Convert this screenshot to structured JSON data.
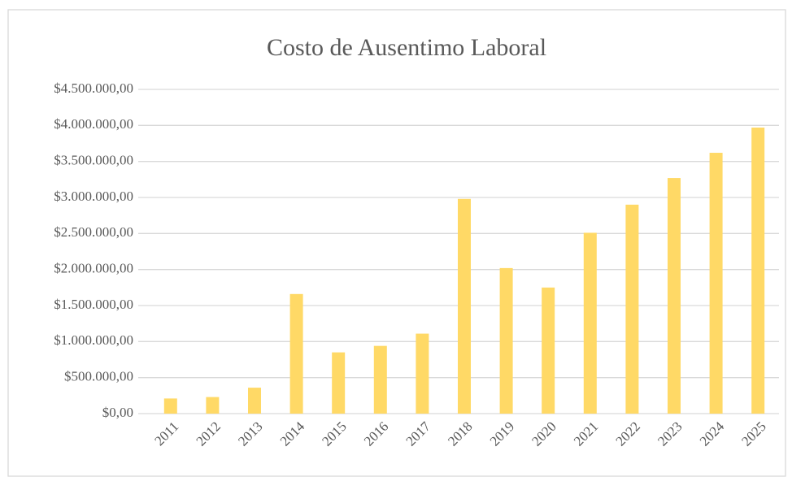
{
  "chart_data": {
    "type": "bar",
    "title": "Costo de Ausentimo Laboral",
    "categories": [
      "2011",
      "2012",
      "2013",
      "2014",
      "2015",
      "2016",
      "2017",
      "2018",
      "2019",
      "2020",
      "2021",
      "2022",
      "2023",
      "2024",
      "2025"
    ],
    "values": [
      210000,
      230000,
      360000,
      1660000,
      850000,
      940000,
      1110000,
      2980000,
      2020000,
      1750000,
      2510000,
      2900000,
      3270000,
      3620000,
      3970000
    ],
    "color": "#ffd966",
    "ylim": [
      0,
      4500000
    ],
    "yticks": [
      {
        "value": 0,
        "label": "$0,00"
      },
      {
        "value": 500000,
        "label": "$500.000,00"
      },
      {
        "value": 1000000,
        "label": "$1.000.000,00"
      },
      {
        "value": 1500000,
        "label": "$1.500.000,00"
      },
      {
        "value": 2000000,
        "label": "$2.000.000,00"
      },
      {
        "value": 2500000,
        "label": "$2.500.000,00"
      },
      {
        "value": 3000000,
        "label": "$3.000.000,00"
      },
      {
        "value": 3500000,
        "label": "$3.500.000,00"
      },
      {
        "value": 4000000,
        "label": "$4.000.000,00"
      },
      {
        "value": 4500000,
        "label": "$4.500.000,00"
      }
    ],
    "grid": true
  }
}
